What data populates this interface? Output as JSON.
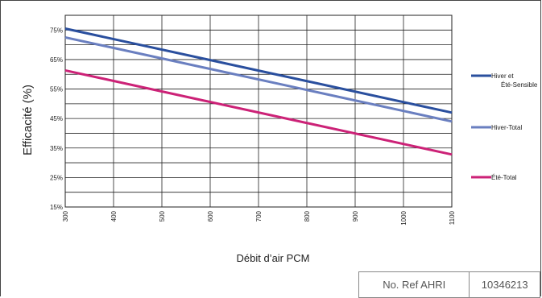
{
  "chart_data": {
    "type": "line",
    "xlabel": "Débit d’air PCM",
    "ylabel": "Efficacité (%)",
    "xlim": [
      300,
      1100
    ],
    "ylim": [
      15,
      80
    ],
    "x_ticks": [
      "300",
      "400",
      "500",
      "600",
      "700",
      "800",
      "900",
      "1000",
      "1100"
    ],
    "y_ticks": [
      "15%",
      "25%",
      "35%",
      "45%",
      "55%",
      "65%",
      "75%"
    ],
    "y_tick_values": [
      15,
      25,
      35,
      45,
      55,
      65,
      75
    ],
    "grid": true,
    "legend_position": "right",
    "series": [
      {
        "name": "Hiver et Été-Sensible",
        "color": "#2a4f9e",
        "x": [
          300,
          1100
        ],
        "y": [
          75.5,
          47
        ]
      },
      {
        "name": "Hiver-Total",
        "color": "#6a7fc0",
        "x": [
          300,
          1100
        ],
        "y": [
          72.5,
          44
        ]
      },
      {
        "name": "Été-Total",
        "color": "#cc2277",
        "x": [
          300,
          1100
        ],
        "y": [
          61.3,
          32.8
        ]
      }
    ]
  },
  "reference": {
    "label": "No. Ref AHRI",
    "value": "10346213"
  }
}
